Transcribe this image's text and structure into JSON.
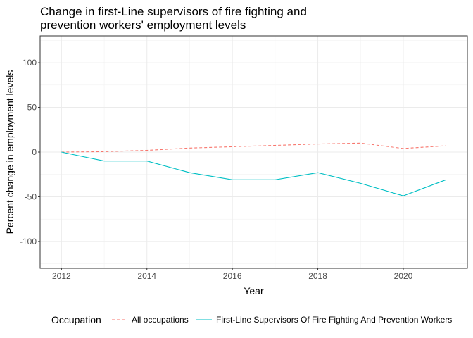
{
  "chart_data": {
    "type": "line",
    "title_lines": [
      "Change in first-Line supervisors of fire fighting and",
      "prevention workers' employment levels"
    ],
    "xlabel": "Year",
    "ylabel": "Percent change in employment levels",
    "xlim": [
      2011.5,
      2021.5
    ],
    "ylim": [
      -130,
      130
    ],
    "x_ticks": [
      2012,
      2014,
      2016,
      2018,
      2020
    ],
    "y_ticks": [
      -100,
      -50,
      0,
      50,
      100
    ],
    "x_tick_labels": [
      "2012",
      "2014",
      "2016",
      "2018",
      "2020"
    ],
    "y_tick_labels": [
      "-100",
      "-50",
      "0",
      "50",
      "100"
    ],
    "grid": true,
    "legend_placement": "bottom",
    "legend_title": "Occupation",
    "x": [
      2012,
      2013,
      2014,
      2015,
      2016,
      2017,
      2018,
      2019,
      2020,
      2021
    ],
    "series": [
      {
        "name": "All occupations",
        "values": [
          0,
          0.5,
          2,
          4.5,
          6,
          7.5,
          9,
          10,
          4,
          7
        ],
        "color": "#F8766D",
        "dash": "dashed"
      },
      {
        "name": "First-Line Supervisors Of Fire Fighting And Prevention Workers",
        "values": [
          0,
          -10,
          -10,
          -23,
          -31,
          -31,
          -23,
          -35,
          -49,
          -31
        ],
        "color": "#00BFC4",
        "dash": "solid"
      }
    ]
  }
}
